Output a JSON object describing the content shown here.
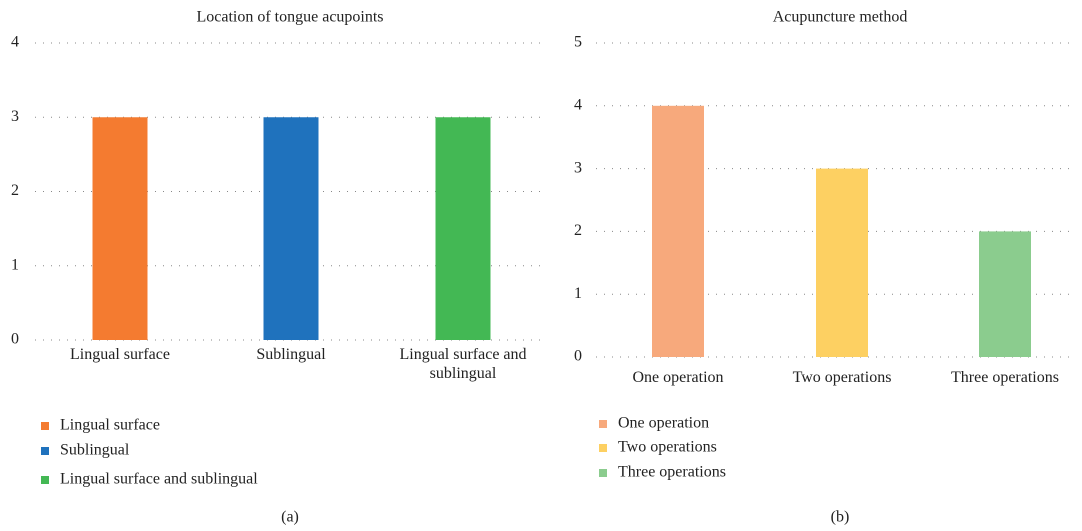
{
  "chart_data": [
    {
      "type": "bar",
      "title": "Location of tongue acupoints",
      "label": "(a)",
      "categories": [
        "Lingual surface",
        "Sublingual",
        "Lingual surface and sublingual"
      ],
      "values": [
        3,
        3,
        3
      ],
      "colors": [
        "#f47b30",
        "#1f72bd",
        "#43b854"
      ],
      "ylim": [
        0,
        4
      ],
      "yticks": [
        0,
        1,
        2,
        3,
        4
      ],
      "grid": true,
      "legend": "bottom-left"
    },
    {
      "type": "bar",
      "title": "Acupuncture method",
      "label": "(b)",
      "categories": [
        "One operation",
        "Two operations",
        "Three operations"
      ],
      "values": [
        4,
        3,
        2
      ],
      "colors": [
        "#f7a97c",
        "#fdd062",
        "#8bcc8e"
      ],
      "ylim": [
        0,
        5
      ],
      "yticks": [
        0,
        1,
        2,
        3,
        4,
        5
      ],
      "grid": true,
      "legend": "bottom-left"
    }
  ]
}
